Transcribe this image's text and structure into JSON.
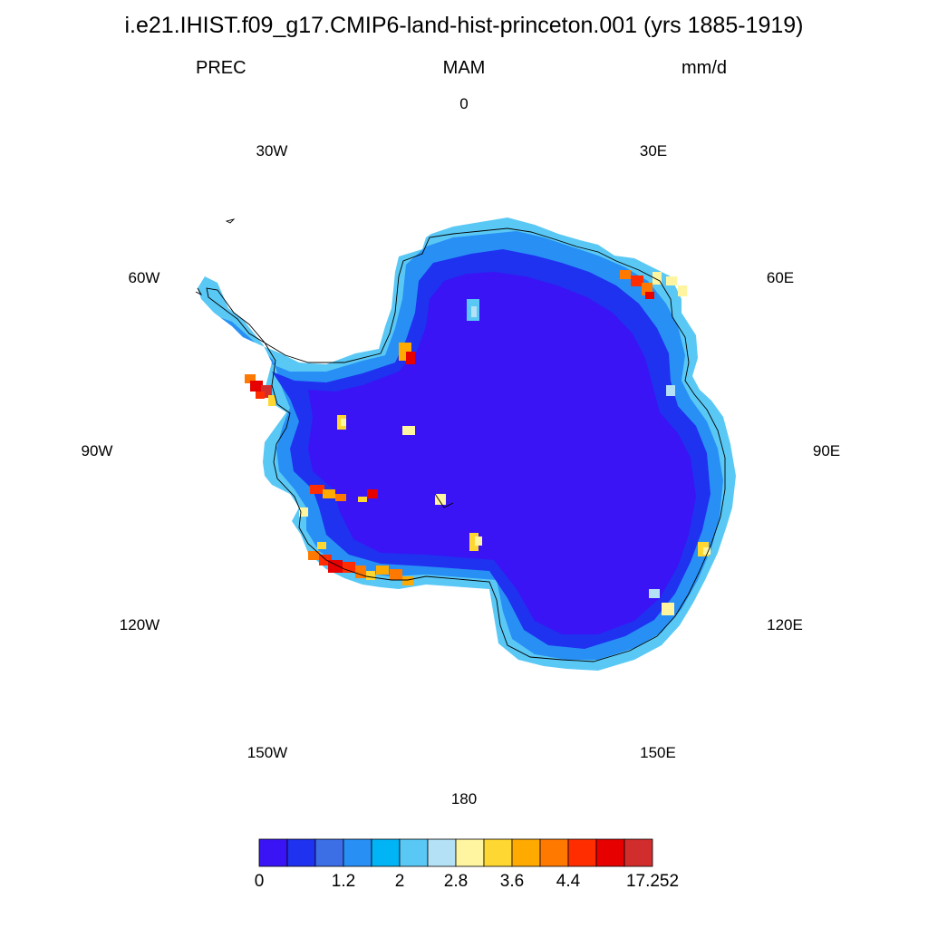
{
  "title": "i.e21.IHIST.f09_g17.CMIP6-land-hist-princeton.001 (yrs 1885-1919)",
  "subtitles": {
    "left": "PREC",
    "center": "MAM",
    "right": "mm/d"
  },
  "longitude_labels": [
    "0",
    "30E",
    "60E",
    "90E",
    "120E",
    "150E",
    "180",
    "150W",
    "120W",
    "90W",
    "60W",
    "30W"
  ],
  "colorbar": {
    "colors": [
      "#3a14f5",
      "#1e32f0",
      "#3c6ee6",
      "#2890f5",
      "#00b4f5",
      "#5ac8f5",
      "#b4e1f5",
      "#fff5a0",
      "#ffd732",
      "#ffaa00",
      "#ff7800",
      "#ff2d00",
      "#e60000",
      "#d22d2d"
    ],
    "tick_labels": [
      "0",
      "1.2",
      "2",
      "2.8",
      "3.6",
      "4.4",
      "17.252"
    ]
  },
  "field": {
    "variable": "PREC",
    "units": "mm/d",
    "region": "Antarctica",
    "projection": "south polar stereographic"
  }
}
